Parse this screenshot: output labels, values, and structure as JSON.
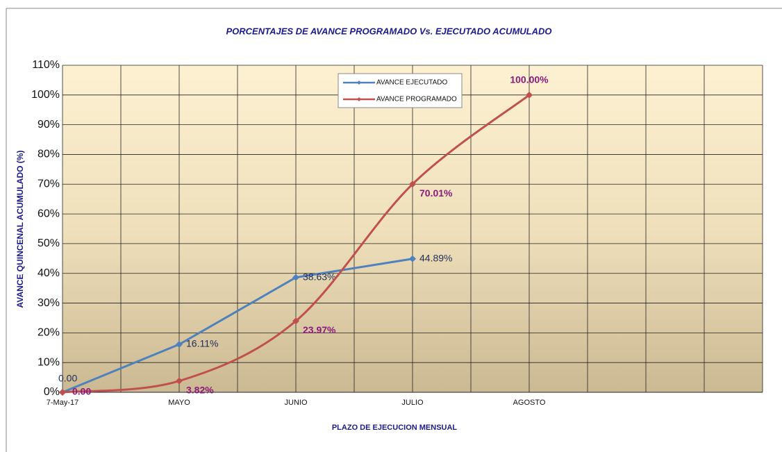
{
  "chart_data": {
    "type": "line",
    "title": "PORCENTAJES DE AVANCE PROGRAMADO Vs. EJECUTADO ACUMULADO",
    "y_label": "AVANCE QUINCENAL ACUMULADO (%)",
    "x_label": "PLAZO DE EJECUCION  MENSUAL",
    "categories": [
      "7-May-17",
      "MAYO",
      "JUNIO",
      "JULIO",
      "AGOSTO",
      null,
      null
    ],
    "series": [
      {
        "name": "AVANCE EJECUTADO",
        "color": "#4f81bd",
        "label_color": "#1f2d5a",
        "smooth": false,
        "values": [
          0,
          16.11,
          38.63,
          44.89,
          null,
          null,
          null
        ],
        "value_labels": [
          "0.00",
          "16.11%",
          "38.63%",
          "44.89%",
          null,
          null,
          null
        ]
      },
      {
        "name": "AVANCE PROGRAMADO",
        "color": "#c0504d",
        "label_color": "#8b1a7a",
        "smooth": true,
        "values": [
          0,
          3.82,
          23.97,
          70.01,
          100,
          null,
          null
        ],
        "value_labels": [
          "0.00",
          "3.82%",
          "23.97%",
          "70.01%",
          "100.00%",
          null,
          null
        ]
      }
    ],
    "ylim": [
      0,
      110
    ],
    "yticks": [
      {
        "value": 0,
        "label": "0%"
      },
      {
        "value": 10,
        "label": "10%"
      },
      {
        "value": 20,
        "label": "20%"
      },
      {
        "value": 30,
        "label": "30%"
      },
      {
        "value": 40,
        "label": "40%"
      },
      {
        "value": 50,
        "label": "50%"
      },
      {
        "value": 60,
        "label": "60%"
      },
      {
        "value": 70,
        "label": "70%"
      },
      {
        "value": 80,
        "label": "80%"
      },
      {
        "value": 90,
        "label": "90%"
      },
      {
        "value": 100,
        "label": "100%"
      },
      {
        "value": 110,
        "label": "110%"
      }
    ],
    "grid": true
  }
}
